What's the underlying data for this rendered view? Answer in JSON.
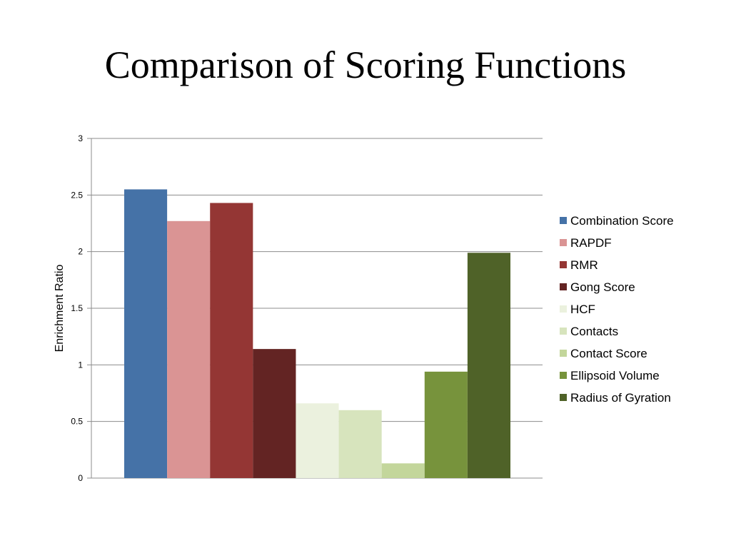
{
  "slide": {
    "title": "Comparison of Scoring Functions"
  },
  "chart_data": {
    "type": "bar",
    "ylabel": "Enrichment Ratio",
    "ylim": [
      0,
      3
    ],
    "yticks": [
      0,
      0.5,
      1,
      1.5,
      2,
      2.5,
      3
    ],
    "ytick_labels": [
      "0",
      "0.5",
      "1",
      "1.5",
      "2",
      "2.5",
      "3"
    ],
    "grid": true,
    "legend_position": "right",
    "series": [
      {
        "name": "Combination Score",
        "value": 2.55,
        "color": "#4572A7"
      },
      {
        "name": "RAPDF",
        "value": 2.27,
        "color": "#DA9494"
      },
      {
        "name": "RMR",
        "value": 2.43,
        "color": "#943634"
      },
      {
        "name": "Gong Score",
        "value": 1.14,
        "color": "#632423"
      },
      {
        "name": "HCF",
        "value": 0.66,
        "color": "#EBF1DE"
      },
      {
        "name": "Contacts",
        "value": 0.6,
        "color": "#D7E4BD"
      },
      {
        "name": "Contact Score",
        "value": 0.13,
        "color": "#C3D69B"
      },
      {
        "name": "Ellipsoid Volume",
        "value": 0.94,
        "color": "#77933C"
      },
      {
        "name": "Radius of Gyration",
        "value": 1.99,
        "color": "#4F6228"
      }
    ]
  }
}
